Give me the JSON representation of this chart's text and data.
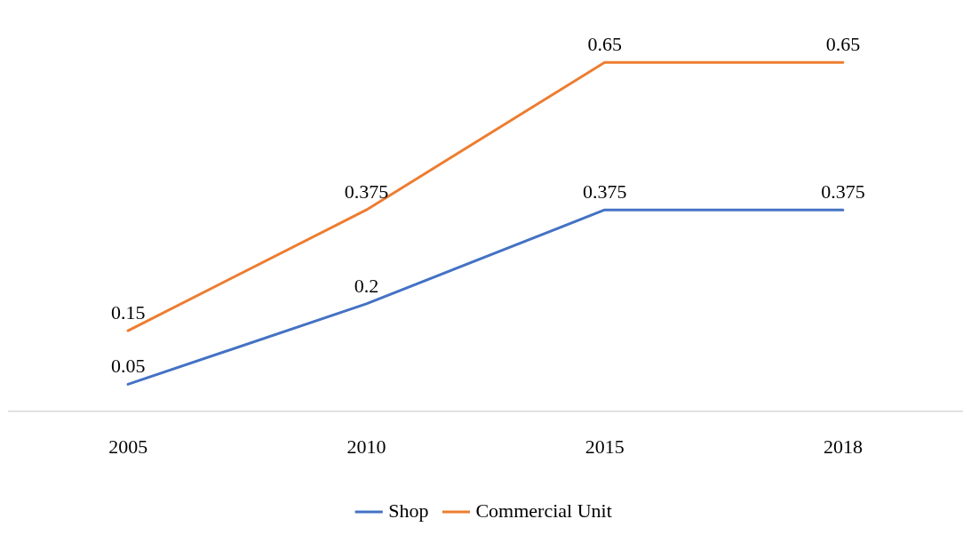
{
  "chart_data": {
    "type": "line",
    "categories": [
      "2005",
      "2010",
      "2015",
      "2018"
    ],
    "series": [
      {
        "name": "Shop",
        "color": "#4472c4",
        "values": [
          0.05,
          0.2,
          0.375,
          0.375
        ]
      },
      {
        "name": "Commercial Unit",
        "color": "#ed7d31",
        "values": [
          0.15,
          0.375,
          0.65,
          0.65
        ]
      }
    ],
    "data_labels": true,
    "legend": "bottom",
    "grid": false,
    "line_style": "solid"
  }
}
